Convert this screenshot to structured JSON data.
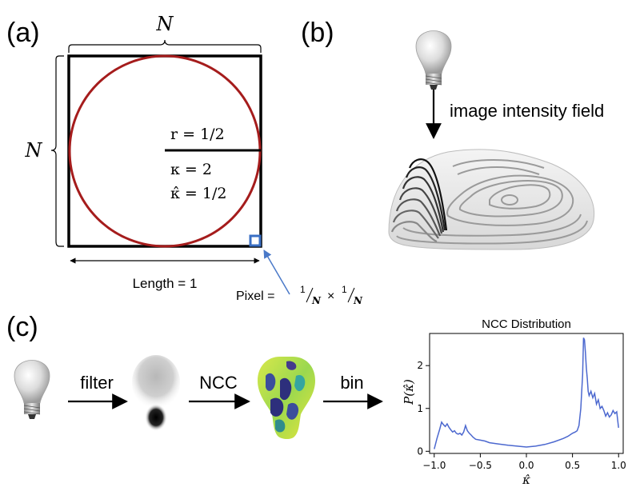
{
  "panels": {
    "a": {
      "label": "(a)",
      "top_dim": "N",
      "left_dim": "N",
      "radius_label": "r = 1/2",
      "kappa_label": "κ = 2",
      "kappa_hat_label": "κ̂ = 1/2",
      "length_label": "Length = 1",
      "pixel_label": "Pixel = ",
      "pixel_frac_1_num": "1",
      "pixel_frac_1_den": "N",
      "pixel_times": "×",
      "pixel_frac_2_num": "1",
      "pixel_frac_2_den": "N"
    },
    "b": {
      "label": "(b)",
      "arrow_label": "image intensity field"
    },
    "c": {
      "label": "(c)",
      "step1": "filter",
      "step2": "NCC",
      "step3": "bin"
    }
  },
  "colors": {
    "circle": "#a51c1c",
    "pixel_box": "#3a6fc4",
    "pixel_arrow": "#4a79c8",
    "line": "#4c68cf",
    "square": "#000000"
  },
  "chart_data": {
    "type": "line",
    "title": "NCC Distribution",
    "xlabel": "κ̂",
    "ylabel": "P(κ̂)",
    "xlim": [
      -1.05,
      1.05
    ],
    "ylim": [
      -0.05,
      2.75
    ],
    "xticks": [
      "−1.0",
      "−0.5",
      "0.0",
      "0.5",
      "1.0"
    ],
    "xtick_values": [
      -1.0,
      -0.5,
      0.0,
      0.5,
      1.0
    ],
    "yticks": [
      "0",
      "1",
      "2"
    ],
    "ytick_values": [
      0,
      1,
      2
    ],
    "grid": false,
    "series": [
      {
        "x": [
          -1.0,
          -0.97,
          -0.94,
          -0.92,
          -0.9,
          -0.88,
          -0.86,
          -0.84,
          -0.82,
          -0.8,
          -0.78,
          -0.76,
          -0.74,
          -0.72,
          -0.7,
          -0.68,
          -0.66,
          -0.64,
          -0.62,
          -0.6,
          -0.58,
          -0.55,
          -0.5,
          -0.45,
          -0.4,
          -0.3,
          -0.2,
          -0.1,
          0.0,
          0.1,
          0.2,
          0.3,
          0.4,
          0.45,
          0.5,
          0.53,
          0.55,
          0.57,
          0.59,
          0.61,
          0.62,
          0.63,
          0.64,
          0.65,
          0.66,
          0.67,
          0.68,
          0.7,
          0.72,
          0.74,
          0.76,
          0.78,
          0.8,
          0.82,
          0.84,
          0.86,
          0.88,
          0.9,
          0.92,
          0.94,
          0.96,
          0.98,
          1.0
        ],
        "y": [
          0.05,
          0.3,
          0.52,
          0.68,
          0.62,
          0.58,
          0.64,
          0.56,
          0.5,
          0.45,
          0.48,
          0.42,
          0.4,
          0.42,
          0.38,
          0.45,
          0.6,
          0.48,
          0.42,
          0.38,
          0.33,
          0.28,
          0.26,
          0.24,
          0.2,
          0.17,
          0.14,
          0.12,
          0.1,
          0.12,
          0.16,
          0.22,
          0.3,
          0.35,
          0.42,
          0.45,
          0.48,
          0.6,
          1.0,
          1.8,
          2.65,
          2.6,
          2.3,
          1.95,
          1.7,
          1.4,
          1.3,
          1.4,
          1.25,
          1.35,
          1.1,
          1.2,
          1.0,
          1.05,
          0.95,
          0.82,
          0.9,
          0.8,
          0.85,
          0.95,
          0.88,
          0.92,
          0.55
        ]
      }
    ]
  }
}
